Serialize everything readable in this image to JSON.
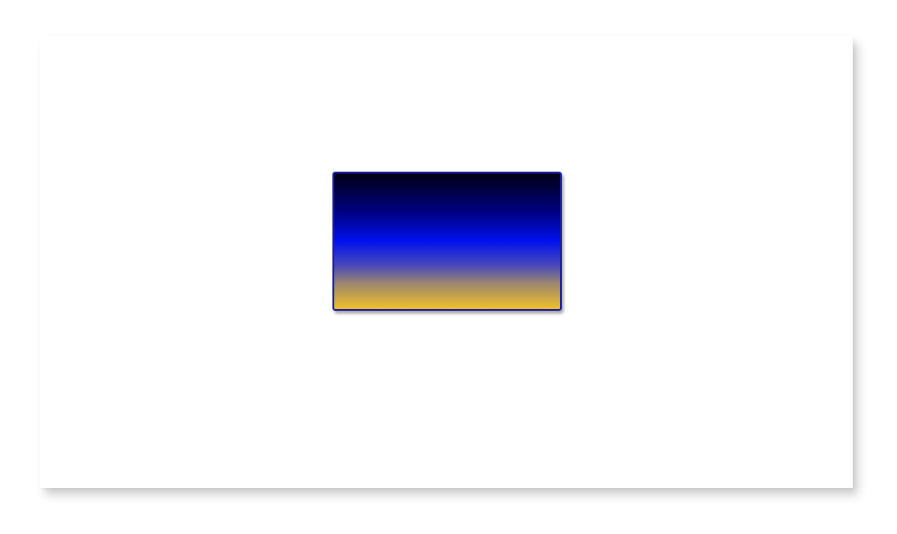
{
  "colors": {
    "page_background": "#ffffff",
    "canvas_background": "#ffffff",
    "rect_border": "#1a1aa6",
    "gradient_stops": [
      "#000014",
      "#000080",
      "#0011ee",
      "#4a4ab8",
      "#a08a6a",
      "#f0c02a"
    ]
  }
}
